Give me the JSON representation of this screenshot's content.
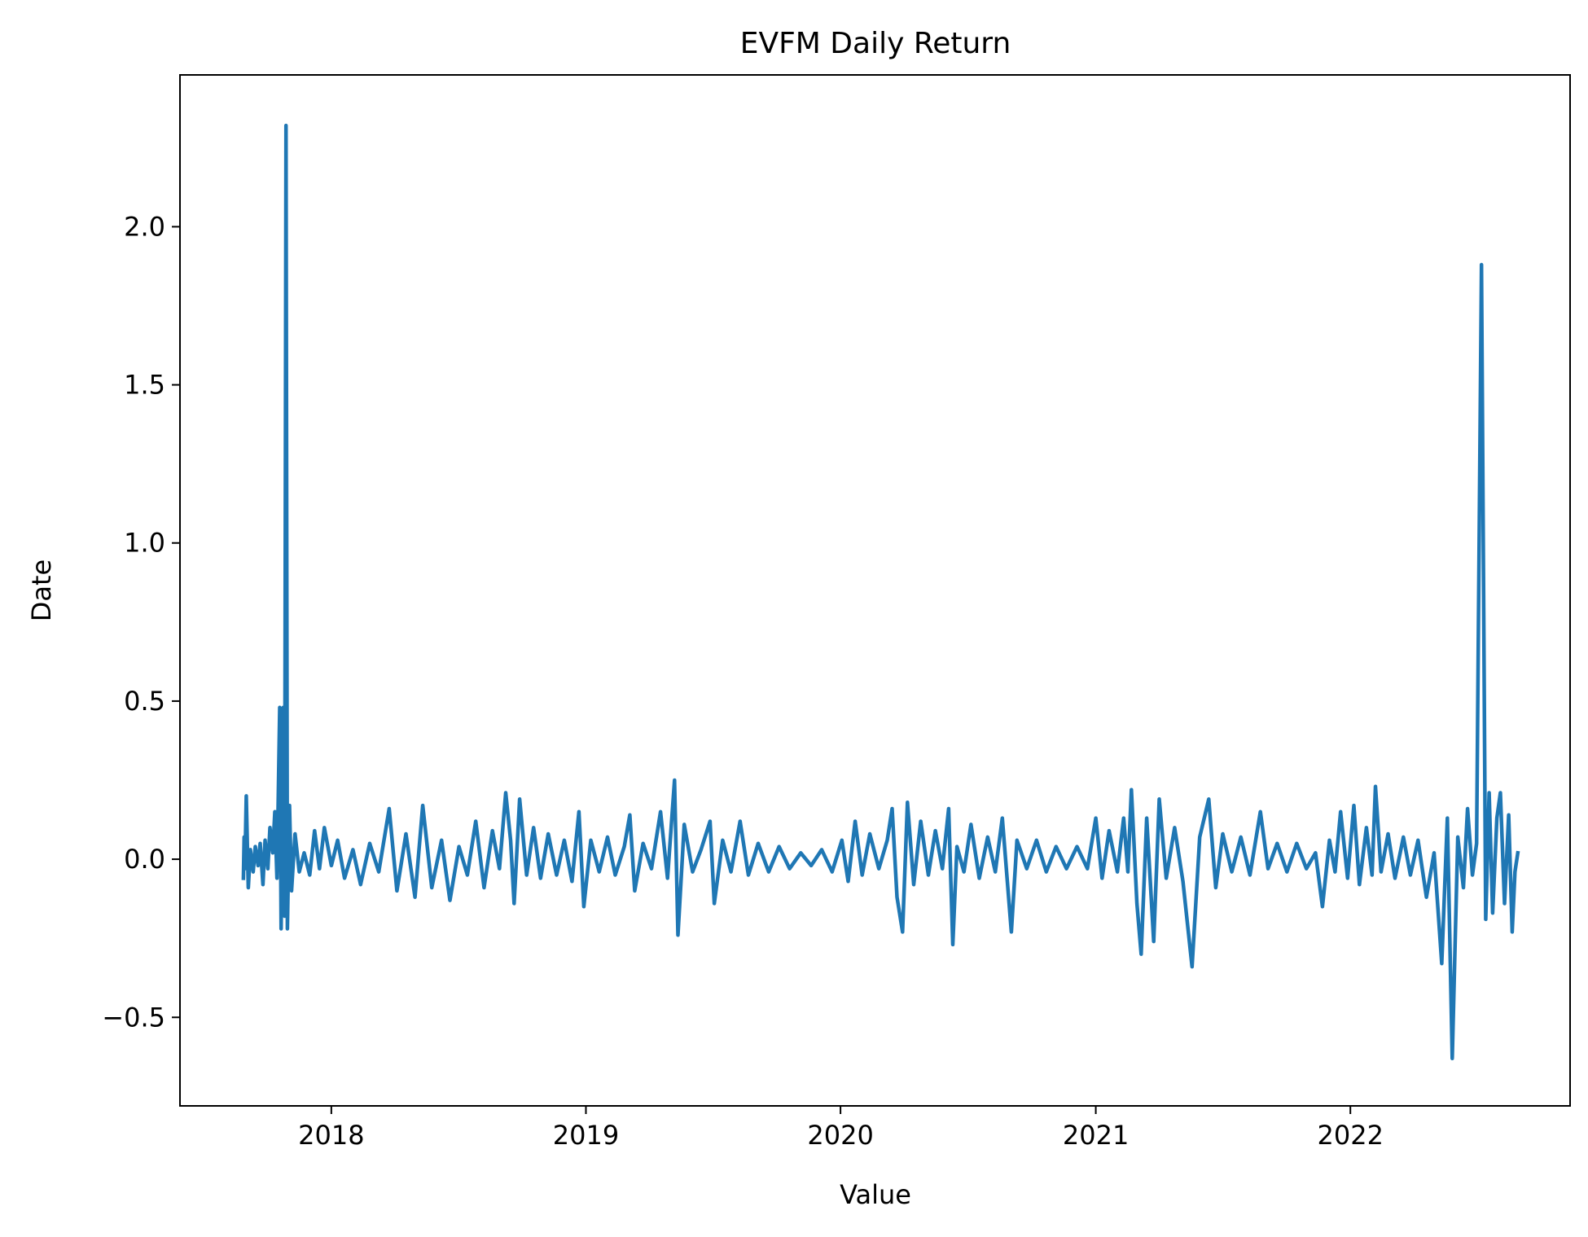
{
  "chart_data": {
    "type": "line",
    "title": "EVFM Daily Return",
    "xlabel": "Value",
    "ylabel": "Date",
    "x_ticks": [
      "2018",
      "2019",
      "2020",
      "2021",
      "2022"
    ],
    "y_ticks": [
      "2.0",
      "1.5",
      "1.0",
      "0.5",
      "0.0",
      "−0.5"
    ],
    "xlim": [
      "2017-05-29",
      "2022-11-12"
    ],
    "ylim": [
      -0.78,
      2.48
    ],
    "grid": false,
    "legend": "none",
    "series_color": "#1f77b4",
    "series": [
      {
        "points": [
          [
            "2017-08-28",
            -0.06
          ],
          [
            "2017-08-29",
            0.07
          ],
          [
            "2017-08-30",
            -0.03
          ],
          [
            "2017-09-01",
            0.2
          ],
          [
            "2017-09-04",
            -0.09
          ],
          [
            "2017-09-07",
            0.03
          ],
          [
            "2017-09-11",
            -0.04
          ],
          [
            "2017-09-14",
            0.04
          ],
          [
            "2017-09-18",
            -0.02
          ],
          [
            "2017-09-21",
            0.05
          ],
          [
            "2017-09-25",
            -0.08
          ],
          [
            "2017-09-28",
            0.06
          ],
          [
            "2017-10-02",
            -0.03
          ],
          [
            "2017-10-05",
            0.1
          ],
          [
            "2017-10-09",
            0.02
          ],
          [
            "2017-10-12",
            0.15
          ],
          [
            "2017-10-15",
            -0.06
          ],
          [
            "2017-10-19",
            0.48
          ],
          [
            "2017-10-21",
            -0.22
          ],
          [
            "2017-10-24",
            0.48
          ],
          [
            "2017-10-26",
            -0.18
          ],
          [
            "2017-10-28",
            2.32
          ],
          [
            "2017-10-30",
            -0.22
          ],
          [
            "2017-11-02",
            0.17
          ],
          [
            "2017-11-05",
            -0.1
          ],
          [
            "2017-11-10",
            0.08
          ],
          [
            "2017-11-16",
            -0.04
          ],
          [
            "2017-11-23",
            0.02
          ],
          [
            "2017-12-01",
            -0.05
          ],
          [
            "2017-12-08",
            0.09
          ],
          [
            "2017-12-15",
            -0.03
          ],
          [
            "2017-12-22",
            0.1
          ],
          [
            "2018-01-01",
            -0.02
          ],
          [
            "2018-01-10",
            0.06
          ],
          [
            "2018-01-20",
            -0.06
          ],
          [
            "2018-02-01",
            0.03
          ],
          [
            "2018-02-12",
            -0.08
          ],
          [
            "2018-02-25",
            0.05
          ],
          [
            "2018-03-10",
            -0.04
          ],
          [
            "2018-03-25",
            0.16
          ],
          [
            "2018-04-05",
            -0.1
          ],
          [
            "2018-04-18",
            0.08
          ],
          [
            "2018-05-01",
            -0.12
          ],
          [
            "2018-05-12",
            0.17
          ],
          [
            "2018-05-25",
            -0.09
          ],
          [
            "2018-06-08",
            0.06
          ],
          [
            "2018-06-20",
            -0.13
          ],
          [
            "2018-07-03",
            0.04
          ],
          [
            "2018-07-15",
            -0.05
          ],
          [
            "2018-07-27",
            0.12
          ],
          [
            "2018-08-08",
            -0.09
          ],
          [
            "2018-08-20",
            0.09
          ],
          [
            "2018-08-30",
            -0.03
          ],
          [
            "2018-09-08",
            0.21
          ],
          [
            "2018-09-15",
            0.06
          ],
          [
            "2018-09-20",
            -0.14
          ],
          [
            "2018-09-28",
            0.19
          ],
          [
            "2018-10-08",
            -0.05
          ],
          [
            "2018-10-18",
            0.1
          ],
          [
            "2018-10-28",
            -0.06
          ],
          [
            "2018-11-08",
            0.08
          ],
          [
            "2018-11-20",
            -0.05
          ],
          [
            "2018-12-01",
            0.06
          ],
          [
            "2018-12-12",
            -0.07
          ],
          [
            "2018-12-22",
            0.15
          ],
          [
            "2018-12-29",
            -0.15
          ],
          [
            "2019-01-08",
            0.06
          ],
          [
            "2019-01-20",
            -0.04
          ],
          [
            "2019-02-01",
            0.07
          ],
          [
            "2019-02-12",
            -0.05
          ],
          [
            "2019-02-25",
            0.04
          ],
          [
            "2019-03-05",
            0.14
          ],
          [
            "2019-03-12",
            -0.1
          ],
          [
            "2019-03-24",
            0.05
          ],
          [
            "2019-04-05",
            -0.03
          ],
          [
            "2019-04-18",
            0.15
          ],
          [
            "2019-04-28",
            -0.06
          ],
          [
            "2019-05-08",
            0.25
          ],
          [
            "2019-05-13",
            -0.24
          ],
          [
            "2019-05-22",
            0.11
          ],
          [
            "2019-06-03",
            -0.04
          ],
          [
            "2019-06-15",
            0.03
          ],
          [
            "2019-06-28",
            0.12
          ],
          [
            "2019-07-04",
            -0.14
          ],
          [
            "2019-07-16",
            0.06
          ],
          [
            "2019-07-28",
            -0.04
          ],
          [
            "2019-08-10",
            0.12
          ],
          [
            "2019-08-22",
            -0.05
          ],
          [
            "2019-09-05",
            0.05
          ],
          [
            "2019-09-20",
            -0.04
          ],
          [
            "2019-10-05",
            0.04
          ],
          [
            "2019-10-20",
            -0.03
          ],
          [
            "2019-11-05",
            0.02
          ],
          [
            "2019-11-20",
            -0.02
          ],
          [
            "2019-12-05",
            0.03
          ],
          [
            "2019-12-20",
            -0.04
          ],
          [
            "2020-01-03",
            0.06
          ],
          [
            "2020-01-12",
            -0.07
          ],
          [
            "2020-01-22",
            0.12
          ],
          [
            "2020-02-01",
            -0.05
          ],
          [
            "2020-02-12",
            0.08
          ],
          [
            "2020-02-25",
            -0.03
          ],
          [
            "2020-03-08",
            0.06
          ],
          [
            "2020-03-15",
            0.16
          ],
          [
            "2020-03-22",
            -0.12
          ],
          [
            "2020-03-30",
            -0.23
          ],
          [
            "2020-04-06",
            0.18
          ],
          [
            "2020-04-15",
            -0.08
          ],
          [
            "2020-04-25",
            0.12
          ],
          [
            "2020-05-06",
            -0.05
          ],
          [
            "2020-05-16",
            0.09
          ],
          [
            "2020-05-26",
            -0.03
          ],
          [
            "2020-06-04",
            0.16
          ],
          [
            "2020-06-10",
            -0.27
          ],
          [
            "2020-06-16",
            0.04
          ],
          [
            "2020-06-26",
            -0.04
          ],
          [
            "2020-07-06",
            0.11
          ],
          [
            "2020-07-18",
            -0.06
          ],
          [
            "2020-07-30",
            0.07
          ],
          [
            "2020-08-10",
            -0.04
          ],
          [
            "2020-08-20",
            0.13
          ],
          [
            "2020-09-02",
            -0.23
          ],
          [
            "2020-09-10",
            0.06
          ],
          [
            "2020-09-24",
            -0.03
          ],
          [
            "2020-10-08",
            0.06
          ],
          [
            "2020-10-22",
            -0.04
          ],
          [
            "2020-11-05",
            0.04
          ],
          [
            "2020-11-20",
            -0.03
          ],
          [
            "2020-12-05",
            0.04
          ],
          [
            "2020-12-20",
            -0.03
          ],
          [
            "2021-01-01",
            0.13
          ],
          [
            "2021-01-10",
            -0.06
          ],
          [
            "2021-01-20",
            0.09
          ],
          [
            "2021-02-01",
            -0.04
          ],
          [
            "2021-02-10",
            0.13
          ],
          [
            "2021-02-16",
            -0.04
          ],
          [
            "2021-02-21",
            0.22
          ],
          [
            "2021-03-01",
            -0.14
          ],
          [
            "2021-03-07",
            -0.3
          ],
          [
            "2021-03-15",
            0.13
          ],
          [
            "2021-03-25",
            -0.26
          ],
          [
            "2021-04-02",
            0.19
          ],
          [
            "2021-04-12",
            -0.06
          ],
          [
            "2021-04-24",
            0.1
          ],
          [
            "2021-05-06",
            -0.07
          ],
          [
            "2021-05-19",
            -0.34
          ],
          [
            "2021-05-30",
            0.07
          ],
          [
            "2021-06-12",
            0.19
          ],
          [
            "2021-06-22",
            -0.09
          ],
          [
            "2021-07-02",
            0.08
          ],
          [
            "2021-07-15",
            -0.04
          ],
          [
            "2021-07-28",
            0.07
          ],
          [
            "2021-08-10",
            -0.05
          ],
          [
            "2021-08-25",
            0.15
          ],
          [
            "2021-09-05",
            -0.03
          ],
          [
            "2021-09-18",
            0.05
          ],
          [
            "2021-10-02",
            -0.04
          ],
          [
            "2021-10-16",
            0.05
          ],
          [
            "2021-10-30",
            -0.03
          ],
          [
            "2021-11-12",
            0.02
          ],
          [
            "2021-11-22",
            -0.15
          ],
          [
            "2021-12-02",
            0.06
          ],
          [
            "2021-12-10",
            -0.04
          ],
          [
            "2021-12-18",
            0.15
          ],
          [
            "2021-12-28",
            -0.06
          ],
          [
            "2022-01-06",
            0.17
          ],
          [
            "2022-01-14",
            -0.08
          ],
          [
            "2022-01-24",
            0.1
          ],
          [
            "2022-02-01",
            -0.05
          ],
          [
            "2022-02-06",
            0.23
          ],
          [
            "2022-02-14",
            -0.04
          ],
          [
            "2022-02-24",
            0.08
          ],
          [
            "2022-03-06",
            -0.06
          ],
          [
            "2022-03-18",
            0.07
          ],
          [
            "2022-03-28",
            -0.05
          ],
          [
            "2022-04-08",
            0.06
          ],
          [
            "2022-04-20",
            -0.12
          ],
          [
            "2022-05-01",
            0.02
          ],
          [
            "2022-05-12",
            -0.33
          ],
          [
            "2022-05-20",
            0.13
          ],
          [
            "2022-05-27",
            -0.63
          ],
          [
            "2022-06-04",
            0.07
          ],
          [
            "2022-06-12",
            -0.09
          ],
          [
            "2022-06-18",
            0.16
          ],
          [
            "2022-06-25",
            -0.05
          ],
          [
            "2022-07-01",
            0.05
          ],
          [
            "2022-07-08",
            1.88
          ],
          [
            "2022-07-14",
            -0.19
          ],
          [
            "2022-07-19",
            0.21
          ],
          [
            "2022-07-24",
            -0.17
          ],
          [
            "2022-07-30",
            0.13
          ],
          [
            "2022-08-04",
            0.21
          ],
          [
            "2022-08-10",
            -0.14
          ],
          [
            "2022-08-16",
            0.14
          ],
          [
            "2022-08-21",
            -0.23
          ],
          [
            "2022-08-25",
            -0.04
          ],
          [
            "2022-08-29",
            0.02
          ]
        ]
      }
    ]
  }
}
